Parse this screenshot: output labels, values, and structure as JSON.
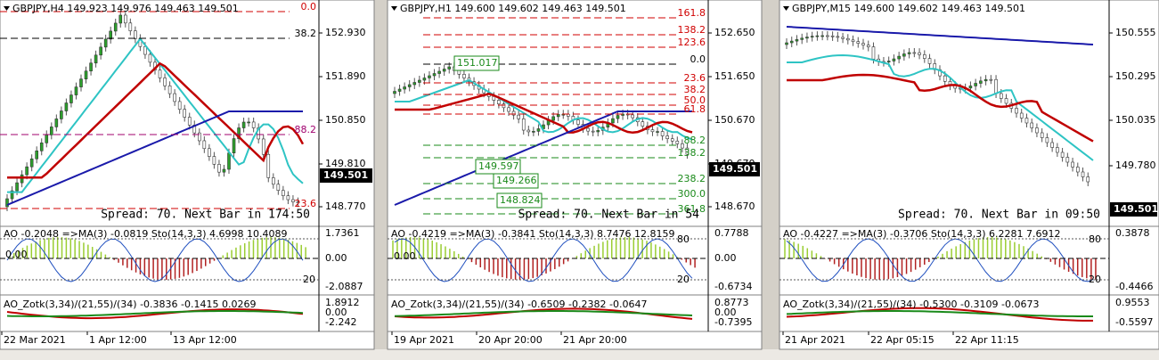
{
  "panels": [
    {
      "header": "GBPJPY,H4  149.923 149.976 149.463 149.501",
      "price_labels": [
        "152.930",
        "151.890",
        "150.850",
        "149.810",
        "148.770"
      ],
      "current_price": "149.501",
      "fib_labels": [
        "0.0",
        "38.2",
        "88.2",
        "23.6"
      ],
      "box_labels": [],
      "spread": "Spread: 70. Next Bar in 174:50",
      "indicator": {
        "header": "AO -0.2048 =>MA(3) -0.0819 Sto(14,3,3) 4.6998 10.4089",
        "axis_labels": [
          "1.7361",
          "0.00",
          "-2.0887"
        ],
        "inner_labels": [
          "0.00",
          "20"
        ]
      },
      "oscillator": {
        "header": "AO_Zotk(3,34)/(21,55)/(34) -0.3836 -0.1415 0.0269",
        "axis_labels": [
          "1.8912",
          "0.00",
          "-2.242"
        ]
      },
      "dates": [
        "22 Mar 2021",
        "1 Apr 12:00",
        "13 Apr 12:00"
      ]
    },
    {
      "header": "GBPJPY,H1  149.600 149.602 149.463 149.501",
      "price_labels": [
        "152.650",
        "151.650",
        "150.670",
        "149.670",
        "148.670"
      ],
      "current_price": "149.501",
      "fib_labels": [
        "161.8",
        "138.2",
        "123.6",
        "0.0",
        "23.6",
        "38.2",
        "50.0",
        "61.8",
        "88.2",
        "138.2",
        "238.2",
        "300.0",
        "361.8"
      ],
      "box_labels": [
        "151.017",
        "149.597",
        "149.266",
        "148.824"
      ],
      "spread": "Spread: 70. Next Bar in 54",
      "indicator": {
        "header": "AO -0.4219 =>MA(3) -0.3841 Sto(14,3,3) 8.7476 12.8159",
        "axis_labels": [
          "0.7788",
          "0.00",
          "-0.6734"
        ],
        "inner_labels": [
          "0.00",
          "80",
          "20"
        ]
      },
      "oscillator": {
        "header": "AO_Zotk(3,34)/(21,55)/(34) -0.6509 -0.2382 -0.0647",
        "axis_labels": [
          "0.8773",
          "0.00",
          "-0.7395"
        ]
      },
      "dates": [
        "19 Apr 2021",
        "20 Apr 20:00",
        "21 Apr 20:00"
      ]
    },
    {
      "header": "GBPJPY,M15  149.600 149.602 149.463 149.501",
      "price_labels": [
        "150.555",
        "150.295",
        "150.035",
        "149.780"
      ],
      "current_price": "149.501",
      "fib_labels": [],
      "box_labels": [],
      "spread": "Spread: 70. Next Bar in 09:50",
      "indicator": {
        "header": "AO -0.4227 =>MA(3) -0.3706 Sto(14,3,3) 6.2281 7.6912",
        "axis_labels": [
          "0.3878",
          "-0.4466"
        ],
        "inner_labels": [
          "80",
          "20"
        ]
      },
      "oscillator": {
        "header": "AO_Zotk(3,34)/(21,55)/(34) -0.5300 -0.3109 -0.0673",
        "axis_labels": [
          "0.9553",
          "-0.5597"
        ]
      },
      "dates": [
        "21 Apr 2021",
        "22 Apr 05:15",
        "22 Apr 11:15"
      ]
    }
  ]
}
